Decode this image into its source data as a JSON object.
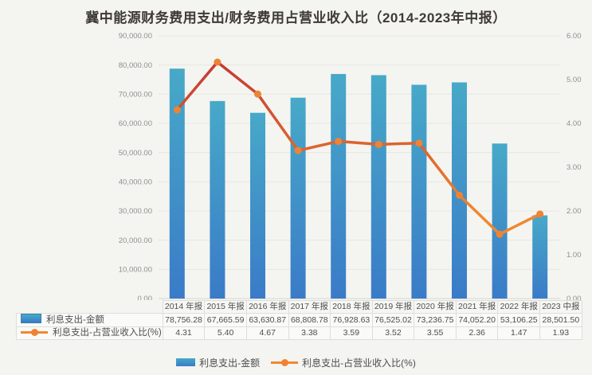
{
  "title": "冀中能源财务费用支出/财务费用占营业收入比（2014-2023年中报）",
  "chart_data": {
    "type": "combo",
    "categories": [
      "2014 年报",
      "2015 年报",
      "2016 年报",
      "2017 年报",
      "2018 年报",
      "2019 年报",
      "2020 年报",
      "2021 年报",
      "2022 年报",
      "2023 中报"
    ],
    "series": [
      {
        "name": "利息支出-金额",
        "type": "bar",
        "axis": "left",
        "values": [
          78756.28,
          67665.59,
          63630.87,
          68808.78,
          76928.63,
          76525.02,
          73236.75,
          74052.2,
          53106.25,
          28501.5
        ],
        "labels": [
          "78,756.28",
          "67,665.59",
          "63,630.87",
          "68,808.78",
          "76,928.63",
          "76,525.02",
          "73,236.75",
          "74,052.20",
          "53,106.25",
          "28,501.50"
        ]
      },
      {
        "name": "利息支出-占营业收入比(%)",
        "type": "line",
        "axis": "right",
        "values": [
          4.31,
          5.4,
          4.67,
          3.38,
          3.59,
          3.52,
          3.55,
          2.36,
          1.47,
          1.93
        ],
        "labels": [
          "4.31",
          "5.40",
          "4.67",
          "3.38",
          "3.59",
          "3.52",
          "3.55",
          "2.36",
          "1.47",
          "1.93"
        ]
      }
    ],
    "left_axis": {
      "min": 0,
      "max": 90000,
      "ticks": [
        "0.00",
        "10,000.00",
        "20,000.00",
        "30,000.00",
        "40,000.00",
        "50,000.00",
        "60,000.00",
        "70,000.00",
        "80,000.00",
        "90,000.00"
      ]
    },
    "right_axis": {
      "min": 0,
      "max": 6,
      "ticks": [
        "0.00",
        "1.00",
        "2.00",
        "3.00",
        "4.00",
        "5.00",
        "6.00"
      ]
    },
    "grid": true,
    "legend_position": "bottom"
  },
  "legend": {
    "items": [
      {
        "label": "利息支出-金额",
        "marker": "bar"
      },
      {
        "label": "利息支出-占营业收入比(%)",
        "marker": "line"
      }
    ]
  },
  "colors": {
    "bar_top": "#47a9c8",
    "bar_bottom": "#3a7bc8",
    "line_top": "#c23a31",
    "line_bottom": "#f0882f",
    "marker": "#ee8334",
    "grid": "#e7e7e3",
    "axis_zero": "#d6d6d1",
    "background": "#f4f4f1",
    "tick_text": "#8f8f8f",
    "title_text": "#3e3a36"
  }
}
